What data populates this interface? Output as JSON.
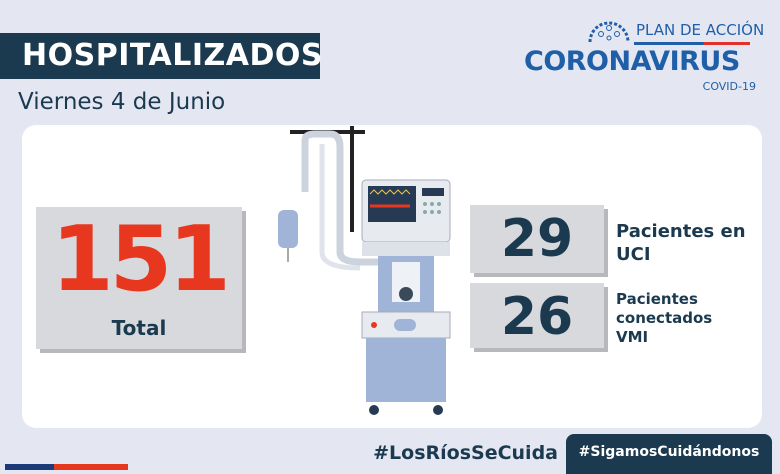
{
  "header": {
    "title": "HOSPITALIZADOS",
    "date": "Viernes 4 de Junio"
  },
  "logo": {
    "plan": "PLAN DE ACCIÓN",
    "name": "CORONAVIRUS",
    "sub": "COVID-19"
  },
  "stats": {
    "total": {
      "value": "151",
      "label": "Total"
    },
    "uci": {
      "value": "29",
      "label_line1": "Pacientes en",
      "label_line2": "UCI"
    },
    "vmi": {
      "value": "26",
      "label_line1": "Pacientes",
      "label_line2": "conectados",
      "label_line3": "VMI"
    }
  },
  "footer": {
    "hashtag1": "#LosRíosSeCuida",
    "hashtag2": "#SigamosCuidándonos"
  },
  "colors": {
    "navy": "#1b3a4f",
    "red": "#e8371f",
    "brand_blue": "#1f5fa8"
  },
  "icons": {
    "illustration": "ventilator-icon",
    "logo": "virus-icon"
  }
}
